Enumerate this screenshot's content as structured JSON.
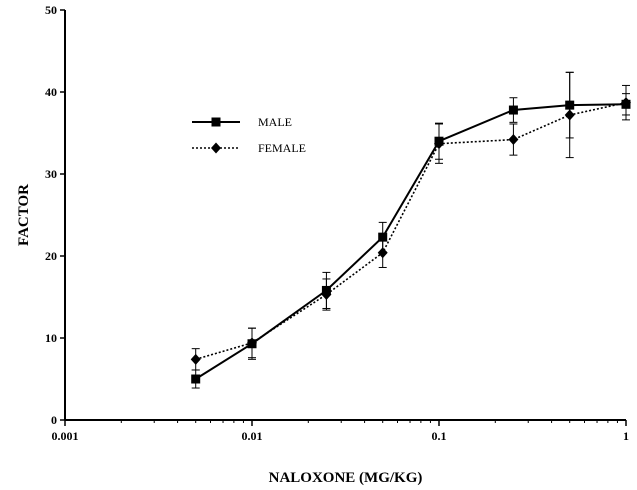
{
  "chart_data": {
    "type": "line",
    "xlabel": "NALOXONE (MG/KG)",
    "ylabel": "FACTOR",
    "xscale": "log",
    "xlim": [
      0.001,
      1
    ],
    "ylim": [
      0,
      50
    ],
    "xticks": [
      0.001,
      0.01,
      0.1,
      1
    ],
    "xtick_labels": [
      "0.001",
      "0.01",
      "0.1",
      "1"
    ],
    "yticks": [
      0,
      10,
      20,
      30,
      40,
      50
    ],
    "ytick_labels": [
      "0",
      "10",
      "20",
      "30",
      "40",
      "50"
    ],
    "grid": false,
    "legend_position": "upper-left",
    "series": [
      {
        "name": "MALE",
        "marker": "square",
        "line_style": "solid",
        "color": "#000000",
        "x": [
          0.005,
          0.01,
          0.025,
          0.05,
          0.1,
          0.25,
          0.5,
          1
        ],
        "y": [
          5.0,
          9.3,
          15.8,
          22.3,
          34.0,
          37.8,
          38.4,
          38.5
        ],
        "err": [
          1.1,
          1.9,
          2.2,
          1.8,
          2.2,
          1.5,
          4.0,
          1.3
        ]
      },
      {
        "name": "FEMALE",
        "marker": "diamond",
        "line_style": "dotted",
        "color": "#000000",
        "x": [
          0.005,
          0.01,
          0.025,
          0.05,
          0.1,
          0.25,
          0.5,
          1
        ],
        "y": [
          7.4,
          9.4,
          15.3,
          20.4,
          33.7,
          34.2,
          37.2,
          38.7
        ],
        "err": [
          1.3,
          1.8,
          1.9,
          1.8,
          2.4,
          1.9,
          5.2,
          2.1
        ]
      }
    ]
  }
}
